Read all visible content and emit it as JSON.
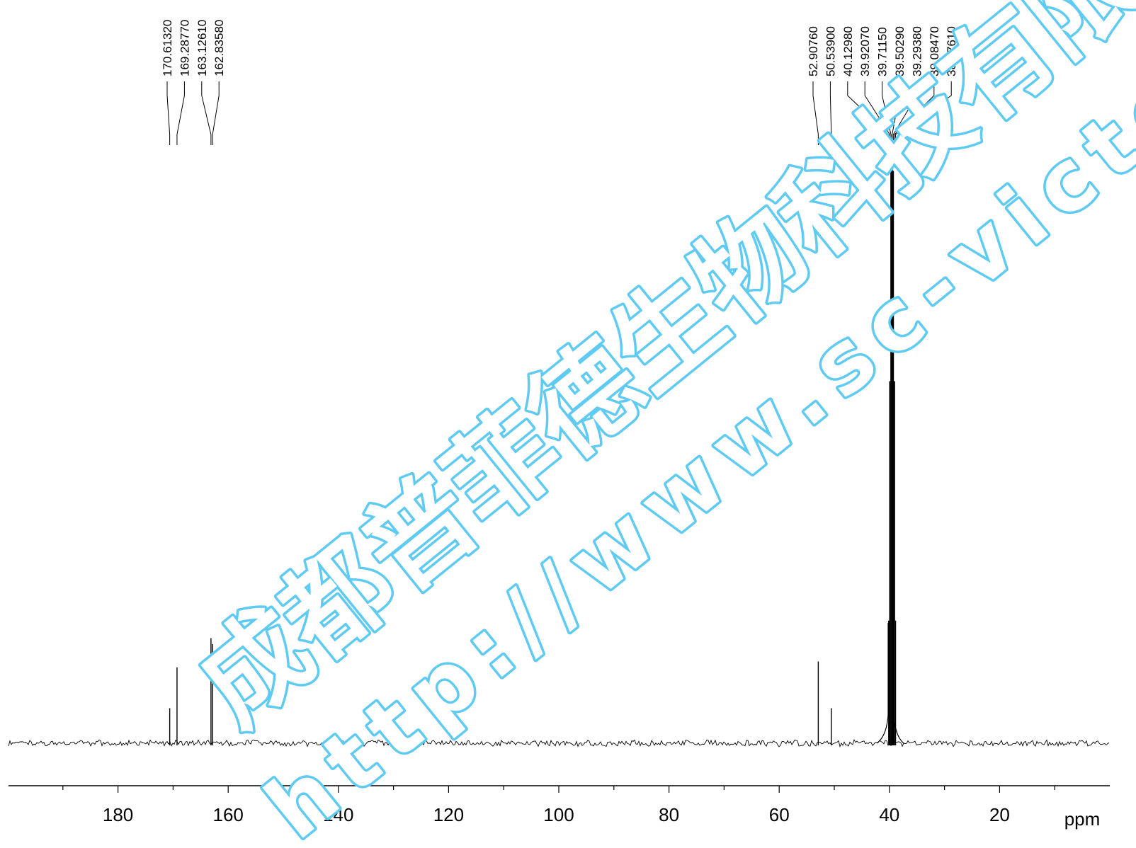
{
  "chart_data": {
    "type": "line",
    "title": "",
    "xlabel": "",
    "x_unit": "ppm",
    "x_reversed": true,
    "xlim": [
      200,
      0
    ],
    "x_ticks": [
      180,
      160,
      140,
      120,
      100,
      80,
      60,
      40,
      20
    ],
    "x_minor_step": 10,
    "grid": false,
    "baseline_noise": true,
    "peaks": [
      {
        "label": "170.61320",
        "ppm": 170.6132,
        "intensity": 0.06
      },
      {
        "label": "169.28770",
        "ppm": 169.2877,
        "intensity": 0.13
      },
      {
        "label": "163.12610",
        "ppm": 163.1261,
        "intensity": 0.18
      },
      {
        "label": "162.83580",
        "ppm": 162.8358,
        "intensity": 0.17
      },
      {
        "label": "52.90760",
        "ppm": 52.9076,
        "intensity": 0.14
      },
      {
        "label": "50.53900",
        "ppm": 50.539,
        "intensity": 0.06
      },
      {
        "label": "40.12980",
        "ppm": 40.1298,
        "intensity": 0.21
      },
      {
        "label": "39.92070",
        "ppm": 39.9207,
        "intensity": 0.62
      },
      {
        "label": "39.71150",
        "ppm": 39.7115,
        "intensity": 0.98
      },
      {
        "label": "39.50290",
        "ppm": 39.5029,
        "intensity": 1.0
      },
      {
        "label": "39.29380",
        "ppm": 39.2938,
        "intensity": 0.98
      },
      {
        "label": "39.08470",
        "ppm": 39.0847,
        "intensity": 0.62
      },
      {
        "label": "38.87610",
        "ppm": 38.8761,
        "intensity": 0.21
      }
    ],
    "colors": {
      "spectrum": "#000000",
      "watermark": "#5fcaf2"
    }
  },
  "watermark": {
    "cn": "成都普菲德生物科技有限公司",
    "url": "http://www.sc-victory.com"
  }
}
